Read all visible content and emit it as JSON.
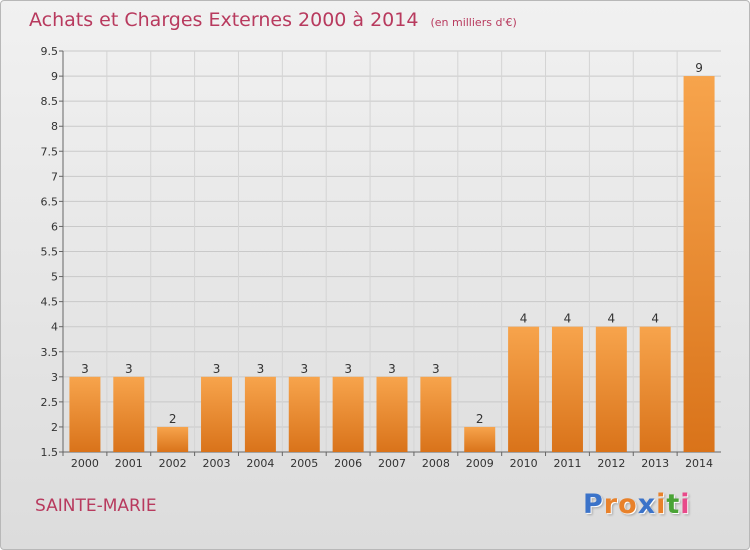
{
  "header": {
    "title": "Achats et Charges Externes 2000 à 2014",
    "unit": "(en milliers d'€)"
  },
  "location": "SAINTE-MARIE",
  "logo": {
    "letters": [
      "P",
      "r",
      "o",
      "x",
      "i",
      "t",
      "i"
    ],
    "colors": [
      "#3b73c9",
      "#e8812a",
      "#e8812a",
      "#3b73c9",
      "#e8812a",
      "#4aa336",
      "#e84a8a"
    ]
  },
  "colors": {
    "title": "#b83a5e",
    "bar_light": "#f7a44c",
    "bar_dark": "#d9731a"
  },
  "chart_data": {
    "type": "bar",
    "title": "Achats et Charges Externes 2000 à 2014",
    "subtitle": "(en milliers d'€)",
    "categories": [
      "2000",
      "2001",
      "2002",
      "2003",
      "2004",
      "2005",
      "2006",
      "2007",
      "2008",
      "2009",
      "2010",
      "2011",
      "2012",
      "2013",
      "2014"
    ],
    "values": [
      3,
      3,
      2,
      3,
      3,
      3,
      3,
      3,
      3,
      2,
      4,
      4,
      4,
      4,
      9
    ],
    "data_labels": [
      "3",
      "3",
      "2",
      "3",
      "3",
      "3",
      "3",
      "3",
      "3",
      "2",
      "4",
      "4",
      "4",
      "4",
      "9"
    ],
    "ylim": [
      1.5,
      9.5
    ],
    "yticks": [
      "1.5",
      "2",
      "2.5",
      "3",
      "3.5",
      "4",
      "4.5",
      "5",
      "5.5",
      "6",
      "6.5",
      "7",
      "7.5",
      "8",
      "8.5",
      "9",
      "9.5"
    ],
    "grid": true,
    "xlabel": "",
    "ylabel": ""
  }
}
